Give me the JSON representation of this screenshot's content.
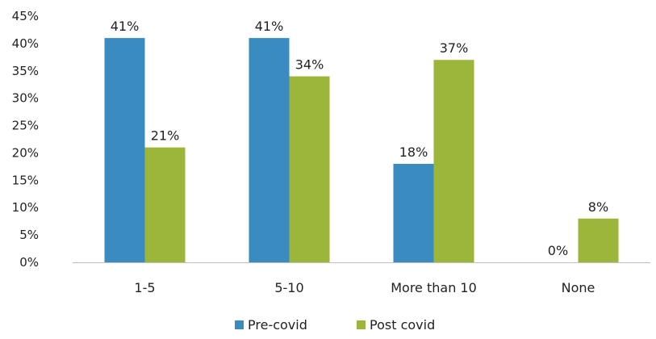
{
  "chart_data": {
    "type": "bar",
    "categories": [
      "1-5",
      "5-10",
      "More than 10",
      "None"
    ],
    "series": [
      {
        "name": "Pre-covid",
        "values": [
          41,
          41,
          18,
          0
        ],
        "labels": [
          "41%",
          "41%",
          "18%",
          "0%"
        ],
        "color": "#3a8bc0"
      },
      {
        "name": "Post covid",
        "values": [
          21,
          34,
          37,
          8
        ],
        "labels": [
          "21%",
          "34%",
          "37%",
          "8%"
        ],
        "color": "#9bb63a"
      }
    ],
    "y_ticks": [
      "0%",
      "5%",
      "10%",
      "15%",
      "20%",
      "25%",
      "30%",
      "35%",
      "40%",
      "45%"
    ],
    "ylim": [
      0,
      45
    ],
    "grid": false,
    "legend_position": "bottom-center",
    "axis_color": "#bfbfbf"
  }
}
